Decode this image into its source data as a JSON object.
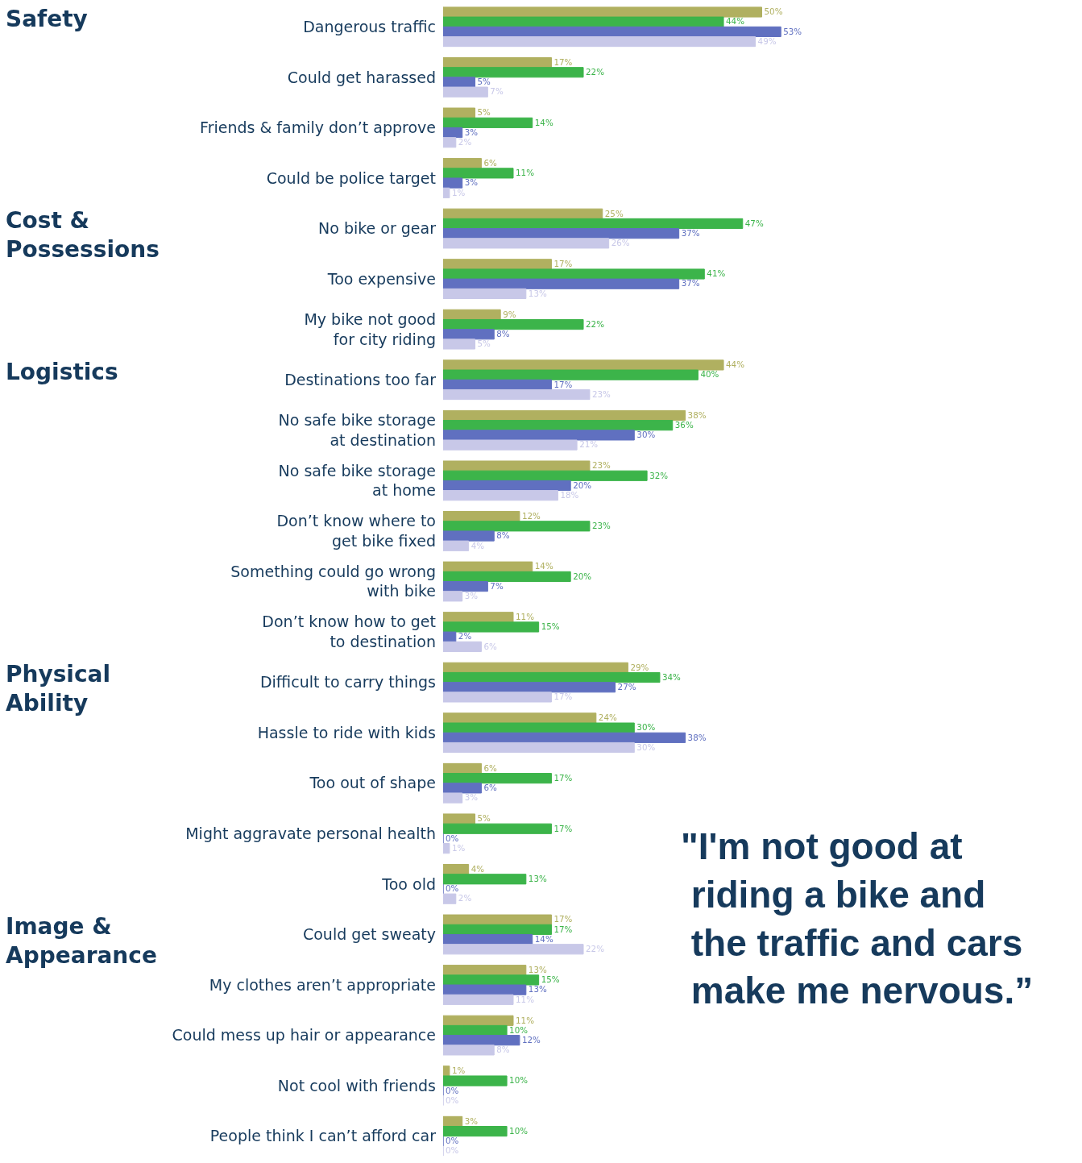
{
  "chart_data": {
    "type": "bar",
    "orientation": "horizontal",
    "tick_labels": "y",
    "grid": false,
    "xlim": [
      0,
      100
    ],
    "categories": [
      "Dangerous traffic",
      "Could get harassed",
      "Friends & family don’t approve",
      "Could be police target",
      "No bike or gear",
      "Too expensive",
      "My bike not good\nfor city riding",
      "Destinations too far",
      "No safe bike storage\nat destination",
      "No safe bike storage\nat home",
      "Don’t know where to\nget bike fixed",
      "Something could go wrong\nwith bike",
      "Don’t know how to get\nto destination",
      "Difficult to carry things",
      "Hassle to ride with kids",
      "Too out of shape",
      "Might aggravate personal health",
      "Too old",
      "Could get sweaty",
      "My clothes aren’t appropriate",
      "Could mess up hair or appearance",
      "Not cool with friends",
      "People think I can’t afford car"
    ],
    "series": [
      {
        "color": "#b0b060",
        "values": [
          50,
          17,
          5,
          6,
          25,
          17,
          9,
          44,
          38,
          23,
          12,
          14,
          11,
          29,
          24,
          6,
          5,
          4,
          17,
          13,
          11,
          1,
          3
        ],
        "value_labels": [
          "50%",
          "17%",
          "5%",
          "6%",
          "25%",
          "17%",
          "9%",
          "44%",
          "38%",
          "23%",
          "12%",
          "14%",
          "11%",
          "29%",
          "24%",
          "6%",
          "5%",
          "4%",
          "17%",
          "13%",
          "11%",
          "1%",
          "3%"
        ]
      },
      {
        "color": "#3cb44a",
        "values": [
          44,
          22,
          14,
          11,
          47,
          41,
          22,
          40,
          36,
          32,
          23,
          20,
          15,
          34,
          30,
          17,
          17,
          13,
          17,
          15,
          10,
          10,
          10
        ],
        "value_labels": [
          "44%",
          "22%",
          "14%",
          "11%",
          "47%",
          "41%",
          "22%",
          "40%",
          "36%",
          "32%",
          "23%",
          "20%",
          "15%",
          "34%",
          "30%",
          "17%",
          "17%",
          "13%",
          "17%",
          "15%",
          "10%",
          "10%",
          "10%"
        ]
      },
      {
        "color": "#6070c0",
        "values": [
          53,
          5,
          3,
          3,
          37,
          37,
          8,
          17,
          30,
          20,
          8,
          7,
          2,
          27,
          38,
          6,
          0,
          0,
          14,
          13,
          12,
          0,
          0
        ],
        "value_labels": [
          "53%",
          "5%",
          "3%",
          "3%",
          "37%",
          "37%",
          "8%",
          "17%",
          "30%",
          "20%",
          "8%",
          "7%",
          "2%",
          "27%",
          "38%",
          "6%",
          "0%",
          "0%",
          "14%",
          "13%",
          "12%",
          "0%",
          "0%"
        ]
      },
      {
        "color": "#c8c8e8",
        "values": [
          49,
          7,
          2,
          1,
          26,
          13,
          5,
          23,
          21,
          18,
          4,
          3,
          6,
          17,
          30,
          3,
          1,
          2,
          22,
          11,
          8,
          0,
          0
        ],
        "value_labels": [
          "49%",
          "7%",
          "2%",
          "1%",
          "26%",
          "13%",
          "5%",
          "23%",
          "21%",
          "18%",
          "4%",
          "3%",
          "6%",
          "17%",
          "30%",
          "3%",
          "1%",
          "2%",
          "22%",
          "11%",
          "8%",
          "0%",
          "0%"
        ]
      }
    ],
    "annotations": [
      "Safety",
      "Cost &\nPossessions",
      "Logistics",
      "Physical\nAbility",
      "Image &\nAppearance",
      "\"I'm not good at\n riding a bike and\n the traffic and cars\n make me nervous.”"
    ]
  }
}
